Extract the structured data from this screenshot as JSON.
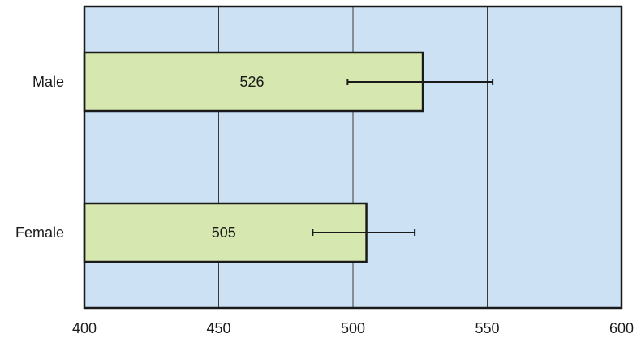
{
  "chart_data": {
    "type": "bar",
    "orientation": "horizontal",
    "categories": [
      "Male",
      "Female"
    ],
    "values": [
      526,
      505
    ],
    "error_bars": [
      {
        "low": 498,
        "high": 552
      },
      {
        "low": 485,
        "high": 523
      }
    ],
    "data_labels": [
      "526",
      "505"
    ],
    "xlim": [
      400,
      600
    ],
    "xticks": [
      400,
      450,
      500,
      550,
      600
    ],
    "tick_labels": [
      "400",
      "450",
      "500",
      "550",
      "600"
    ],
    "grid": "vertical",
    "title": "",
    "xlabel": "",
    "ylabel": "",
    "colors": {
      "plot_background": "#cce1f4",
      "bar_fill": "#d6e8b0",
      "bar_stroke": "#1a1a1a",
      "grid": "#3a3a3a",
      "error_bar": "#1a1a1a"
    }
  }
}
